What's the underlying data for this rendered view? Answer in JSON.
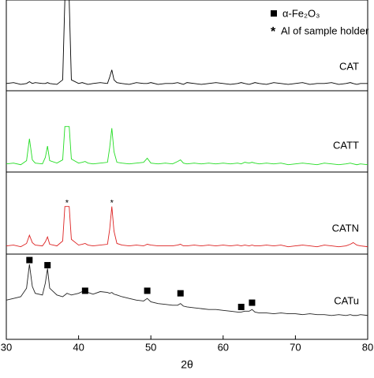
{
  "chart_data": {
    "type": "line",
    "x_label": "2θ",
    "xlim": [
      30,
      80
    ],
    "xticks": [
      30,
      40,
      50,
      60,
      70,
      80
    ],
    "ylim": [
      0,
      100
    ],
    "x": [
      30,
      31,
      32,
      32.8,
      33.2,
      33.6,
      34,
      35,
      35.4,
      35.7,
      36,
      37,
      37.8,
      38.1,
      38.4,
      38.7,
      39,
      40,
      40.5,
      40.9,
      41.3,
      42,
      43,
      44,
      44.3,
      44.6,
      44.9,
      45.3,
      46,
      47,
      48,
      49,
      49.5,
      50,
      51,
      52,
      53,
      53.7,
      54.1,
      54.5,
      55,
      56,
      57,
      58,
      59,
      60,
      61,
      62,
      62.5,
      63,
      63.6,
      64,
      64.4,
      65,
      66,
      67,
      68,
      69,
      70,
      71,
      72,
      73,
      74,
      75,
      76,
      77,
      77.6,
      78,
      78.5,
      79,
      80
    ],
    "series": [
      {
        "name": "CAT",
        "color": "#000000",
        "values": [
          8,
          9,
          7,
          8,
          10,
          8,
          9,
          8,
          8,
          9,
          8,
          7,
          12,
          100,
          100,
          100,
          12,
          8,
          9,
          8,
          7,
          8,
          9,
          8,
          15,
          23,
          12,
          9,
          8,
          7,
          9,
          8,
          8,
          9,
          7,
          8,
          8,
          9,
          8,
          7,
          9,
          8,
          7,
          8,
          9,
          8,
          7,
          8,
          9,
          8,
          7,
          8,
          9,
          8,
          7,
          9,
          8,
          7,
          8,
          9,
          7,
          8,
          8,
          9,
          7,
          8,
          9,
          8,
          7,
          8,
          8
        ]
      },
      {
        "name": "CATT",
        "color": "#22dd22",
        "values": [
          10,
          11,
          9,
          14,
          41,
          15,
          11,
          10,
          18,
          32,
          14,
          11,
          15,
          56,
          56,
          56,
          16,
          11,
          12,
          13,
          11,
          10,
          11,
          12,
          30,
          54,
          25,
          12,
          11,
          10,
          11,
          12,
          17,
          11,
          10,
          11,
          10,
          13,
          15,
          11,
          10,
          11,
          10,
          11,
          10,
          11,
          10,
          11,
          10,
          12,
          11,
          12,
          11,
          10,
          11,
          10,
          11,
          9,
          10,
          11,
          10,
          9,
          11,
          10,
          9,
          10,
          11,
          10,
          9,
          10,
          9
        ]
      },
      {
        "name": "CATN",
        "color": "#dd2222",
        "values": [
          10,
          11,
          9,
          13,
          23,
          14,
          11,
          10,
          15,
          21,
          12,
          10,
          16,
          58,
          58,
          58,
          18,
          11,
          12,
          13,
          11,
          10,
          11,
          12,
          30,
          58,
          28,
          13,
          11,
          10,
          11,
          10,
          12,
          11,
          10,
          10,
          10,
          11,
          12,
          10,
          10,
          11,
          10,
          11,
          10,
          11,
          10,
          11,
          10,
          11,
          10,
          11,
          10,
          10,
          11,
          10,
          11,
          9,
          10,
          11,
          10,
          9,
          11,
          10,
          9,
          10,
          12,
          14,
          11,
          10,
          9
        ]
      },
      {
        "name": "CATu",
        "color": "#222222",
        "values": [
          46,
          48,
          50,
          60,
          88,
          62,
          54,
          52,
          66,
          83,
          60,
          52,
          50,
          52,
          54,
          53,
          52,
          54,
          56,
          58,
          55,
          53,
          56,
          55,
          54,
          55,
          53,
          52,
          50,
          48,
          46,
          45,
          48,
          44,
          42,
          41,
          40,
          40,
          42,
          39,
          38,
          37,
          36,
          35,
          35,
          34,
          33,
          32,
          32,
          33,
          33,
          35,
          32,
          31,
          31,
          30,
          31,
          30,
          30,
          29,
          30,
          29,
          29,
          28,
          29,
          28,
          29,
          28,
          28,
          29,
          28
        ]
      }
    ],
    "markers": {
      "x": [
        33.2,
        35.7,
        40.9,
        49.5,
        54.1,
        62.5,
        64.0
      ],
      "y": [
        93,
        87,
        57,
        57,
        54,
        38,
        43
      ]
    },
    "al_peaks": {
      "symbol": "*",
      "x": [
        38.4,
        44.6
      ],
      "y": [
        62,
        62
      ]
    },
    "legend": [
      "α-Fe₂O₃",
      "Al of sample holder"
    ]
  }
}
